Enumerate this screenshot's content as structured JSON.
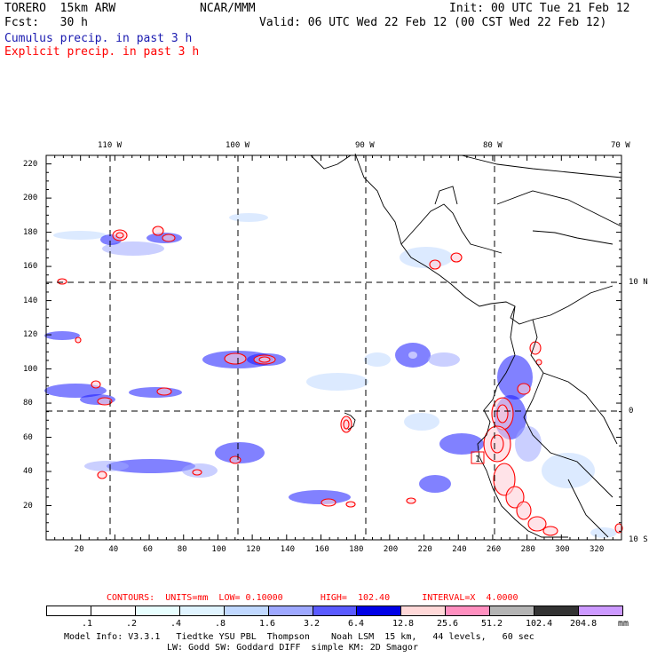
{
  "header": {
    "model": "TORERO  15km ARW",
    "center": "NCAR/MMM",
    "init": "Init: 00 UTC Tue 21 Feb 12",
    "fcst": "Fcst:   30 h",
    "valid": "Valid: 06 UTC Wed 22 Feb 12 (00 CST Wed 22 Feb 12)",
    "cumulus": "Cumulus precip. in past 3 h",
    "explicit": "Explicit precip. in past 3 h"
  },
  "colors": {
    "cumulus": "#1a1aff",
    "explicit": "#ff0000",
    "coast": "#000000"
  },
  "axes": {
    "lon_labels": [
      "110 W",
      "100 W",
      "90 W",
      "80 W",
      "70 W"
    ],
    "lat_labels": [
      "10 N",
      "0",
      "10 S"
    ],
    "x_ticks": [
      "20",
      "40",
      "60",
      "80",
      "100",
      "120",
      "140",
      "160",
      "180",
      "200",
      "220",
      "240",
      "260",
      "280",
      "300",
      "320"
    ],
    "y_ticks": [
      "220",
      "200",
      "180",
      "160",
      "140",
      "120",
      "100",
      "80",
      "60",
      "40",
      "20"
    ]
  },
  "contours": {
    "text": "CONTOURS:  UNITS=mm  LOW= 0.10000       HIGH=  102.40      INTERVAL=X  4.0000"
  },
  "colorbar": {
    "unit": "mm",
    "labels": [
      ".1",
      ".2",
      ".4",
      ".8",
      "1.6",
      "3.2",
      "6.4",
      "12.8",
      "25.6",
      "51.2",
      "102.4",
      "204.8"
    ],
    "colors": [
      "#ffffff",
      "#ffffff",
      "#e8ffff",
      "#e0f4ff",
      "#c0d8ff",
      "#9ea8ff",
      "#5a5aff",
      "#0000e6",
      "#ffd8d8",
      "#ff8fbf",
      "#b4b4b4",
      "#333333",
      "#cc99ff"
    ]
  },
  "model_info": {
    "line1": "Model Info: V3.3.1   Tiedtke YSU PBL  Thompson    Noah LSM  15 km,   44 levels,   60 sec",
    "line2": "LW: Godd SW: Goddard DIFF  simple KM: 2D Smagor"
  },
  "marker": "1"
}
